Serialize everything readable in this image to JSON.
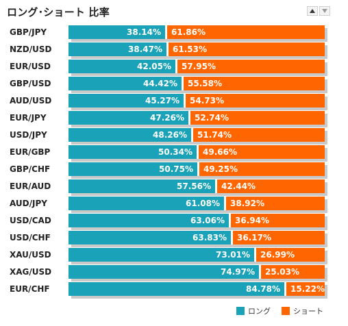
{
  "title": "ロング･ショート 比率",
  "sort_controls": {
    "up_icon": "triangle-up-icon",
    "down_icon": "triangle-down-icon"
  },
  "colors": {
    "long": "#1aa3b8",
    "short": "#ff6600"
  },
  "legend": {
    "long_label": "ロング",
    "short_label": "ショート"
  },
  "rows": [
    {
      "pair": "GBP/JPY",
      "long": "38.14%",
      "short": "61.86%",
      "long_value": 38.14
    },
    {
      "pair": "NZD/USD",
      "long": "38.47%",
      "short": "61.53%",
      "long_value": 38.47
    },
    {
      "pair": "EUR/USD",
      "long": "42.05%",
      "short": "57.95%",
      "long_value": 42.05
    },
    {
      "pair": "GBP/USD",
      "long": "44.42%",
      "short": "55.58%",
      "long_value": 44.42
    },
    {
      "pair": "AUD/USD",
      "long": "45.27%",
      "short": "54.73%",
      "long_value": 45.27
    },
    {
      "pair": "EUR/JPY",
      "long": "47.26%",
      "short": "52.74%",
      "long_value": 47.26
    },
    {
      "pair": "USD/JPY",
      "long": "48.26%",
      "short": "51.74%",
      "long_value": 48.26
    },
    {
      "pair": "EUR/GBP",
      "long": "50.34%",
      "short": "49.66%",
      "long_value": 50.34
    },
    {
      "pair": "GBP/CHF",
      "long": "50.75%",
      "short": "49.25%",
      "long_value": 50.75
    },
    {
      "pair": "EUR/AUD",
      "long": "57.56%",
      "short": "42.44%",
      "long_value": 57.56
    },
    {
      "pair": "AUD/JPY",
      "long": "61.08%",
      "short": "38.92%",
      "long_value": 61.08
    },
    {
      "pair": "USD/CAD",
      "long": "63.06%",
      "short": "36.94%",
      "long_value": 63.06
    },
    {
      "pair": "USD/CHF",
      "long": "63.83%",
      "short": "36.17%",
      "long_value": 63.83
    },
    {
      "pair": "XAU/USD",
      "long": "73.01%",
      "short": "26.99%",
      "long_value": 73.01
    },
    {
      "pair": "XAG/USD",
      "long": "74.97%",
      "short": "25.03%",
      "long_value": 74.97
    },
    {
      "pair": "EUR/CHF",
      "long": "84.78%",
      "short": "15.22%",
      "long_value": 84.78
    }
  ]
}
